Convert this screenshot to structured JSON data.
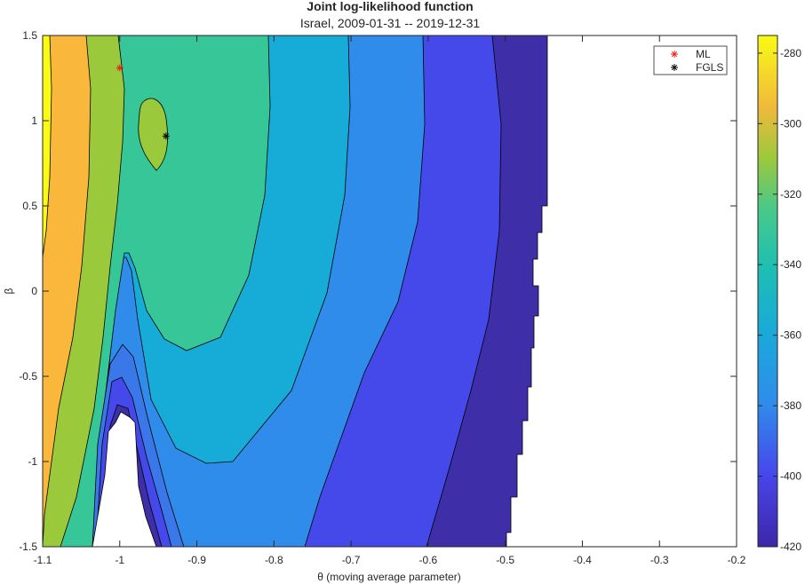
{
  "chart_data": {
    "type": "contour",
    "title": "Joint log-likelihood function",
    "subtitle": "Israel, 2009-01-31 -- 2019-12-31",
    "xlabel": "θ (moving average parameter)",
    "ylabel": "β",
    "xlim": [
      -1.1,
      -0.2
    ],
    "ylim": [
      -1.5,
      1.5
    ],
    "x_ticks": [
      "-1.1",
      "-1",
      "-0.9",
      "-0.8",
      "-0.7",
      "-0.6",
      "-0.5",
      "-0.4",
      "-0.3",
      "-0.2"
    ],
    "y_ticks": [
      "-1.5",
      "-1",
      "-0.5",
      "0",
      "0.5",
      "1",
      "1.5"
    ],
    "colorbar": {
      "ticks": [
        "-280",
        "-300",
        "-320",
        "-340",
        "-360",
        "-380",
        "-400",
        "-420"
      ],
      "range": [
        -420,
        -275
      ],
      "colormap": "parula"
    },
    "contour_levels": [
      -420,
      -410,
      -400,
      -390,
      -380,
      -370,
      -360,
      -340,
      -320,
      -300,
      -280
    ],
    "points": [
      {
        "name": "ML",
        "theta": -1.0,
        "beta": 1.31,
        "color": "#e8231a"
      },
      {
        "name": "FGLS",
        "theta": -0.94,
        "beta": 0.91,
        "color": "#000000"
      }
    ],
    "legend": {
      "position": "top-right",
      "entries": [
        "ML",
        "FGLS"
      ]
    }
  }
}
